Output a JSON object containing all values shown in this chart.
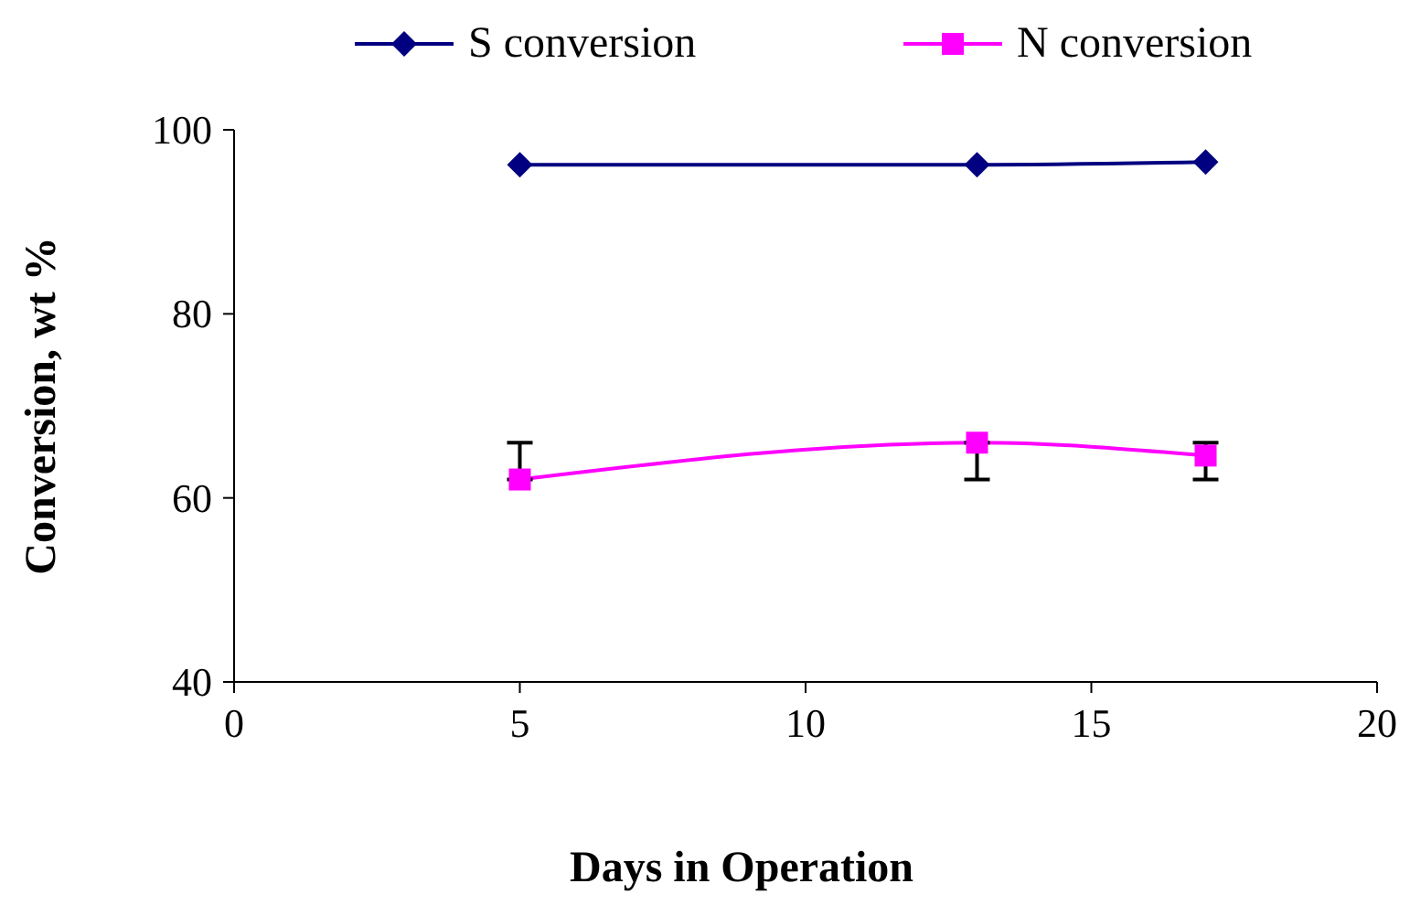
{
  "chart_data": {
    "type": "line",
    "xlabel": "Days in Operation",
    "ylabel": "Conversion, wt %",
    "xlim": [
      0,
      20
    ],
    "xticks": [
      0,
      5,
      10,
      15,
      20
    ],
    "ylim": [
      40,
      100
    ],
    "yticks": [
      40,
      60,
      80,
      100
    ],
    "grid": false,
    "legend": "top",
    "line_style": "solid",
    "series": [
      {
        "name": "S conversion",
        "color": "#000080",
        "marker": "diamond",
        "x": [
          5,
          13,
          17
        ],
        "values": [
          96.2,
          96.2,
          96.5
        ]
      },
      {
        "name": "N conversion",
        "color": "#ff00ff",
        "marker": "square",
        "x": [
          5,
          13,
          17
        ],
        "values": [
          62,
          66,
          64.6
        ],
        "errors": [
          [
            62,
            66
          ],
          [
            62,
            66
          ],
          [
            62,
            66
          ]
        ]
      }
    ]
  }
}
